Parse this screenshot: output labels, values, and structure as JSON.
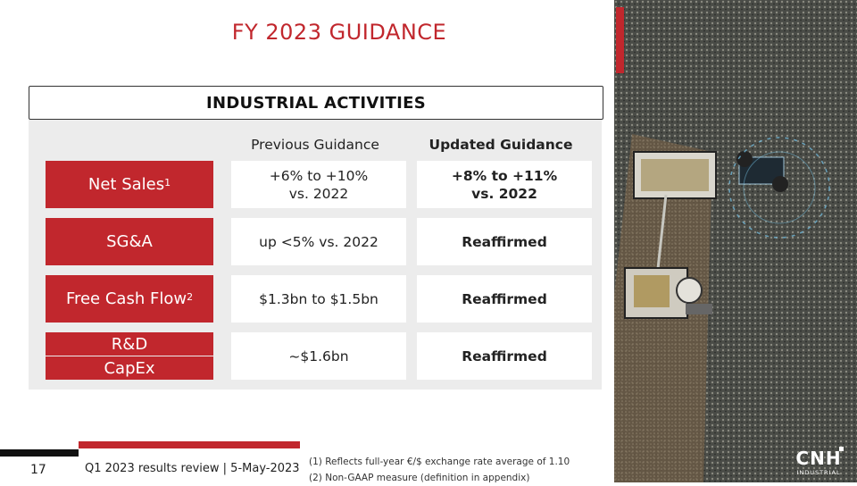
{
  "header": {
    "title": "FY 2023 GUIDANCE"
  },
  "section": {
    "title": "INDUSTRIAL ACTIVITIES"
  },
  "columns": {
    "previous": "Previous Guidance",
    "updated": "Updated Guidance"
  },
  "rows": [
    {
      "label": "Net Sales",
      "sup": "1",
      "previous": [
        "+6% to +10%",
        "vs. 2022"
      ],
      "updated": [
        "+8% to +11%",
        "vs. 2022"
      ]
    },
    {
      "label": "SG&A",
      "previous": [
        "up <5% vs. 2022"
      ],
      "updated": [
        "Reaffirmed"
      ]
    },
    {
      "label": "Free Cash Flow",
      "sup": "2",
      "previous": [
        "$1.3bn to $1.5bn"
      ],
      "updated": [
        "Reaffirmed"
      ]
    },
    {
      "label_top": "R&D",
      "label_bottom": "CapEx",
      "previous": [
        "~$1.6bn"
      ],
      "updated": [
        "Reaffirmed"
      ]
    }
  ],
  "footer": {
    "page_number": "17",
    "review": "Q1 2023 results review | 5-May-2023",
    "footnote_1": "(1) Reflects full-year €/$ exchange rate average of 1.10",
    "footnote_2": "(2) Non-GAAP measure (definition in appendix)"
  },
  "logo": {
    "brand": "CNH",
    "subtitle": "INDUSTRIAL",
    "icon": "cnh-industrial-logo"
  },
  "photo": {
    "icon": "aerial-harvester-photo"
  },
  "colors": {
    "accent": "#c1272d",
    "panel": "#ececec"
  }
}
